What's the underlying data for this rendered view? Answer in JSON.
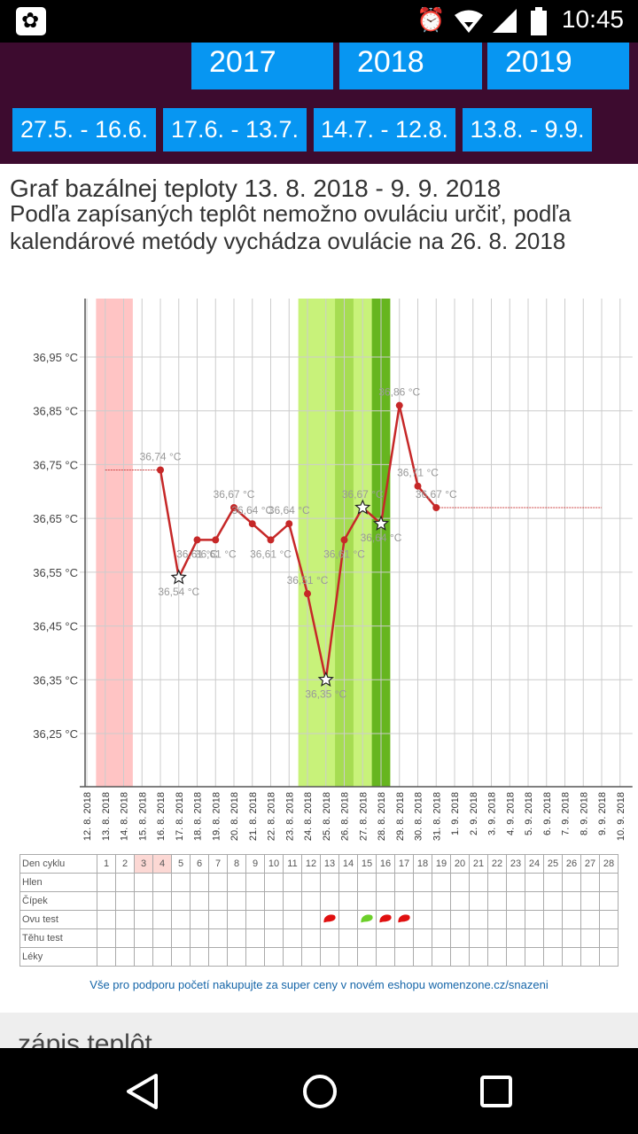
{
  "status_bar": {
    "time": "10:45"
  },
  "years": [
    "2017",
    "2018",
    "2019"
  ],
  "periods": [
    "27.5. - 16.6.",
    "17.6. - 13.7.",
    "14.7. - 12.8.",
    "13.8. - 9.9."
  ],
  "page_title": "Graf bazálnej teploty 13. 8. 2018 - 9. 9. 2018",
  "description": "Podľa zapísaných teplôt nemožno ovuláciu určiť, podľa kalendárové metódy vychádza ovulácie na 26. 8. 2018",
  "chart_data": {
    "type": "line",
    "ylabel_ticks": [
      "36,95 °C",
      "36,85 °C",
      "36,75 °C",
      "36,65 °C",
      "36,55 °C",
      "36,45 °C",
      "36,35 °C",
      "36,25 °C"
    ],
    "y_ticks": [
      36.95,
      36.85,
      36.75,
      36.65,
      36.55,
      36.45,
      36.35,
      36.25
    ],
    "ylim": [
      36.16,
      37.05
    ],
    "x_dates": [
      "12. 8. 2018",
      "13. 8. 2018",
      "14. 8. 2018",
      "15. 8. 2018",
      "16. 8. 2018",
      "17. 8. 2018",
      "18. 8. 2018",
      "19. 8. 2018",
      "20. 8. 2018",
      "21. 8. 2018",
      "22. 8. 2018",
      "23. 8. 2018",
      "24. 8. 2018",
      "25. 8. 2018",
      "26. 8. 2018",
      "27. 8. 2018",
      "28. 8. 2018",
      "29. 8. 2018",
      "30. 8. 2018",
      "31. 8. 2018",
      "1. 9. 2018",
      "2. 9. 2018",
      "3. 9. 2018",
      "4. 9. 2018",
      "5. 9. 2018",
      "6. 9. 2018",
      "7. 9. 2018",
      "8. 9. 2018",
      "9. 9. 2018",
      "10. 9. 2018"
    ],
    "series": [
      {
        "points": [
          {
            "x": 4,
            "y": 36.74,
            "label": "36,74 °C",
            "star": false
          },
          {
            "x": 5,
            "y": 36.54,
            "label": "36,54 °C",
            "star": true
          },
          {
            "x": 6,
            "y": 36.61,
            "label": "36,61 °C",
            "star": false
          },
          {
            "x": 7,
            "y": 36.61,
            "label": "36,61 °C",
            "star": false
          },
          {
            "x": 8,
            "y": 36.67,
            "label": "36,67 °C",
            "star": false
          },
          {
            "x": 9,
            "y": 36.64,
            "label": "36,64 °C",
            "star": false
          },
          {
            "x": 10,
            "y": 36.61,
            "label": "36,61 °C",
            "star": false
          },
          {
            "x": 11,
            "y": 36.64,
            "label": "36,64 °C",
            "star": false
          },
          {
            "x": 12,
            "y": 36.51,
            "label": "36,51 °C",
            "star": false
          },
          {
            "x": 13,
            "y": 36.35,
            "label": "36,35 °C",
            "star": true
          },
          {
            "x": 14,
            "y": 36.61,
            "label": "36,61 °C",
            "star": false
          },
          {
            "x": 15,
            "y": 36.67,
            "label": "36,67 °C",
            "star": true
          },
          {
            "x": 16,
            "y": 36.64,
            "label": "36,64 °C",
            "star": true
          },
          {
            "x": 17,
            "y": 36.86,
            "label": "36,86 °C",
            "star": false
          },
          {
            "x": 18,
            "y": 36.71,
            "label": "36,71 °C",
            "star": false
          },
          {
            "x": 19,
            "y": 36.67,
            "label": "36,67 °C",
            "star": false
          }
        ]
      }
    ],
    "reference_lines": [
      {
        "x_from": 1,
        "x_to": 4,
        "y": 36.74
      },
      {
        "x_from": 19,
        "x_to": 28,
        "y": 36.67
      }
    ],
    "bands": [
      {
        "from": 0.5,
        "to": 2.5,
        "color": "#ffc4c4"
      },
      {
        "from": 11.5,
        "to": 16.5,
        "color": "#c8f27a"
      },
      {
        "from": 13.5,
        "to": 14.5,
        "color": "#a6dc52"
      },
      {
        "from": 15.5,
        "to": 16.5,
        "color": "#66b51f"
      }
    ],
    "grid": true
  },
  "cycle_table": {
    "row_labels": [
      "Den cyklu",
      "Hlen",
      "Čípek",
      "Ovu test",
      "Těhu test",
      "Léky"
    ],
    "days": [
      "1",
      "2",
      "3",
      "4",
      "5",
      "6",
      "7",
      "8",
      "9",
      "10",
      "11",
      "12",
      "13",
      "14",
      "15",
      "16",
      "17",
      "18",
      "19",
      "20",
      "21",
      "22",
      "23",
      "24",
      "25",
      "26",
      "27",
      "28"
    ],
    "highlight_days": [
      3,
      4
    ],
    "ovu_tests": [
      {
        "day": 13,
        "result": "negative",
        "color": "#e01010"
      },
      {
        "day": 15,
        "result": "positive",
        "color": "#6ccf2a"
      },
      {
        "day": 16,
        "result": "negative",
        "color": "#e01010"
      },
      {
        "day": 17,
        "result": "negative",
        "color": "#e01010"
      }
    ]
  },
  "shop_link": "Vše pro podporu početí nakupujte za super ceny v novém eshopu womenzone.cz/snazeni",
  "section_heading": "zápis teplôt",
  "icons": {
    "app": "flower-app-icon",
    "alarm": "alarm-icon",
    "wifi": "wifi-icon",
    "signal": "signal-icon",
    "battery": "battery-icon",
    "back": "back-icon",
    "home": "home-icon",
    "recents": "recents-icon"
  }
}
